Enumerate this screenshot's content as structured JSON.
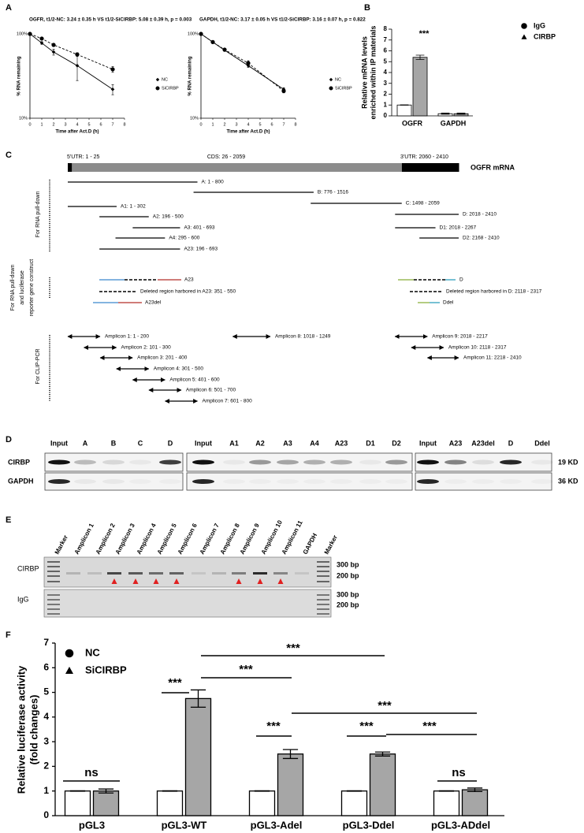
{
  "panel_labels": [
    "A",
    "B",
    "C",
    "D",
    "E",
    "F"
  ],
  "chart_data": [
    {
      "type": "line",
      "title": "OGFR, t1/2-NC: 3.24 ± 0.35 h VS t1/2-SiCIRBP: 5.08 ± 0.39 h, p = 0.003",
      "x_label": "Time after Act.D (h)",
      "y_label": [
        "% RNA remaining"
      ],
      "x": [
        0,
        1,
        2,
        4,
        7
      ],
      "series": [
        {
          "name": "NC",
          "color": "#000000",
          "marker": "diamond",
          "line": "solid",
          "values": [
            100,
            78,
            61,
            42,
            22
          ],
          "errors": [
            0,
            3,
            5,
            14,
            3
          ]
        },
        {
          "name": "SiCIRBP",
          "color": "#000000",
          "marker": "circle",
          "line": "dashed",
          "values": [
            100,
            88,
            74,
            57,
            38
          ],
          "errors": [
            0,
            2,
            3,
            3,
            3
          ]
        }
      ],
      "xlim": [
        0,
        8
      ],
      "xticks": [
        0,
        1,
        2,
        3,
        4,
        5,
        6,
        7,
        8
      ],
      "ylim": [
        10,
        100
      ],
      "yticks": [
        {
          "value": 10,
          "label": "10%"
        },
        {
          "value": 100,
          "label": "100%"
        }
      ],
      "log_y": true
    },
    {
      "type": "line",
      "title": "GAPDH, t1/2-NC: 3.17 ± 0.05 h VS t1/2-SiCIRBP: 3.16 ± 0.07 h, p = 0.822",
      "x_label": "Time after Act.D (h)",
      "y_label": [
        "% RNA remaining"
      ],
      "x": [
        0,
        1,
        2,
        4,
        7
      ],
      "series": [
        {
          "name": "NC",
          "color": "#000000",
          "marker": "diamond",
          "line": "solid",
          "values": [
            100,
            80,
            64,
            42,
            22
          ],
          "errors": [
            0,
            2,
            2,
            2,
            1
          ]
        },
        {
          "name": "SiCIRBP",
          "color": "#000000",
          "marker": "circle",
          "line": "dashed",
          "values": [
            100,
            80,
            65,
            45,
            21
          ],
          "errors": [
            0,
            2,
            2,
            3,
            1
          ]
        }
      ],
      "xlim": [
        0,
        8
      ],
      "xticks": [
        0,
        1,
        2,
        3,
        4,
        5,
        6,
        7,
        8
      ],
      "ylim": [
        10,
        100
      ],
      "yticks": [
        {
          "value": 10,
          "label": "10%"
        },
        {
          "value": 100,
          "label": "100%"
        }
      ],
      "log_y": true
    },
    {
      "type": "bar",
      "y_label": [
        "Relative mRNA levels",
        "enriched within IP materials"
      ],
      "categories": [
        "OGFR",
        "GAPDH"
      ],
      "series": [
        {
          "name": "IgG",
          "color": "#ffffff",
          "marker": "circle",
          "values": [
            1,
            0.2
          ],
          "errors": [
            0.02,
            0.05
          ]
        },
        {
          "name": "CIRBP",
          "color": "#a6a6a6",
          "marker": "triangle",
          "values": [
            5.4,
            0.2
          ],
          "errors": [
            0.2,
            0.05
          ]
        }
      ],
      "ylim": [
        0,
        8
      ],
      "yticks": [
        0,
        1,
        2,
        3,
        4,
        5,
        6,
        7,
        8
      ],
      "annotations": [
        "***"
      ]
    },
    {
      "type": "bar",
      "y_label": [
        "Relative luciferase activity",
        "(fold changes)"
      ],
      "categories": [
        "pGL3",
        "pGL3-WT",
        "pGL3-Adel",
        "pGL3-Ddel",
        "pGL3-ADdel"
      ],
      "series": [
        {
          "name": "NC",
          "color": "#ffffff",
          "marker": "circle",
          "values": [
            1,
            1,
            1,
            1,
            1
          ],
          "errors": [
            0.01,
            0.01,
            0.01,
            0.01,
            0.01
          ]
        },
        {
          "name": "SiCIRBP",
          "color": "#a6a6a6",
          "marker": "triangle",
          "values": [
            1.0,
            4.75,
            2.5,
            2.5,
            1.05
          ],
          "errors": [
            0.08,
            0.35,
            0.18,
            0.08,
            0.07
          ]
        }
      ],
      "ylim": [
        0,
        7
      ],
      "yticks": [
        0,
        1,
        2,
        3,
        4,
        5,
        6,
        7
      ],
      "annotations": [
        "ns",
        "***",
        "***",
        "***",
        "***",
        "***",
        "***",
        "***",
        "ns"
      ]
    }
  ],
  "mrna_map": {
    "regions": [
      "5'UTR: 1 - 25",
      "CDS: 26 - 2059",
      "3'UTR: 2060 - 2410"
    ],
    "label": "OGFR mRNA",
    "groups": [
      {
        "label": [
          "For RNA pull-down"
        ],
        "items": [
          "A: 1 - 800",
          "B: 776 - 1516",
          "C: 1498 - 2059",
          "A1: 1 - 302",
          "D: 2018 - 2410",
          "A2: 196 - 500",
          "A3: 401 - 693",
          "D1: 2018 - 2267",
          "A4: 295 - 600",
          "D2: 2168 - 2410",
          "A23: 196 - 693"
        ]
      },
      {
        "label": [
          "For RNA pull-down",
          "and luciferase",
          "reporter gene construct"
        ],
        "items": [
          "A23",
          "Deleted region harbored in A23: 351 - 550",
          "A23del",
          "D",
          "Deleted region harbored in D: 2118 - 2317",
          "Ddel"
        ]
      },
      {
        "label": [
          "For CLIP-PCR"
        ],
        "items": [
          "Amplicon 1: 1 - 200",
          "Amplicon 2: 101 - 300",
          "Amplicon 3: 201 - 400",
          "Amplicon 4: 301 - 500",
          "Amplicon 5: 401 - 600",
          "Amplicon 6: 501 - 700",
          "Amplicon 7: 601 - 800",
          "Amplicon 8: 1018 - 1249",
          "Amplicon 9: 2018 - 2217",
          "Amplicon 10: 2118 - 2317",
          "Amplicon 11: 2218 - 2410"
        ]
      }
    ]
  },
  "western_blot": {
    "lanes": [
      [
        "Input",
        "A",
        "B",
        "C",
        "D"
      ],
      [
        "Input",
        "A1",
        "A2",
        "A3",
        "A4",
        "A23",
        "D1",
        "D2"
      ],
      [
        "Input",
        "A23",
        "A23del",
        "D",
        "Ddel"
      ]
    ],
    "rows": [
      "CIRBP",
      "GAPDH"
    ],
    "sizes": [
      "19 KD",
      "36 KD"
    ]
  },
  "gel": {
    "lanes": [
      "Marker",
      "Amplicon 1",
      "Amplicon 2",
      "Amplicon 3",
      "Amplicon 4",
      "Amplicon 5",
      "Amplicon 6",
      "Amplicon 7",
      "Amplicon 8",
      "Amplicon 9",
      "Amplicon 10",
      "Amplicon 11",
      "GAPDH",
      "Marker"
    ],
    "rows": [
      "CIRBP",
      "IgG"
    ],
    "markers": [
      [
        "300 bp",
        "200 bp"
      ],
      [
        "300 bp",
        "200 bp"
      ]
    ]
  }
}
